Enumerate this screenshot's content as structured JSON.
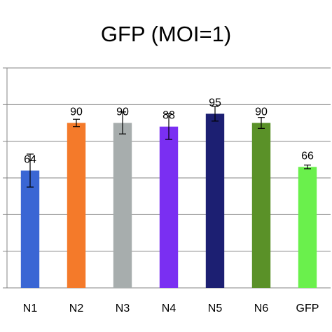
{
  "chart_data": {
    "type": "bar",
    "title": "GFP (MOI=1)",
    "xlabel": "",
    "ylabel": "",
    "categories": [
      "N1",
      "N2",
      "N3",
      "N4",
      "N5",
      "N6",
      "GFP"
    ],
    "values": [
      64,
      90,
      90,
      88,
      95,
      90,
      66
    ],
    "value_labels": [
      "64",
      "90",
      "90",
      "88",
      "95",
      "90",
      "66"
    ],
    "error": [
      9,
      2,
      6,
      7,
      4,
      3,
      1
    ],
    "ylim": [
      0,
      120
    ],
    "ytick_step": 20,
    "grid": true,
    "legend": false,
    "colors": [
      "#3a66d4",
      "#f47a2a",
      "#a7adad",
      "#7a2ff2",
      "#1c1f72",
      "#5a9128",
      "#6af04c"
    ]
  }
}
